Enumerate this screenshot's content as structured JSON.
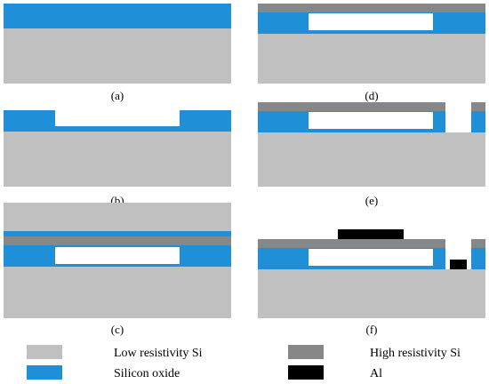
{
  "captions": {
    "a": "(a)",
    "b": "(b)",
    "c": "(c)",
    "d": "(d)",
    "e": "(e)",
    "f": "(f)"
  },
  "legend": {
    "low_si": "Low resistivity Si",
    "high_si": "High resistivity Si",
    "oxide": "Silicon oxide",
    "al": "Al"
  },
  "colors": {
    "low_resistivity_si": "#c0c0c0",
    "high_resistivity_si": "#878787",
    "silicon_oxide": "#1f8fd8",
    "aluminum": "#000000",
    "cavity": "#ffffff"
  }
}
